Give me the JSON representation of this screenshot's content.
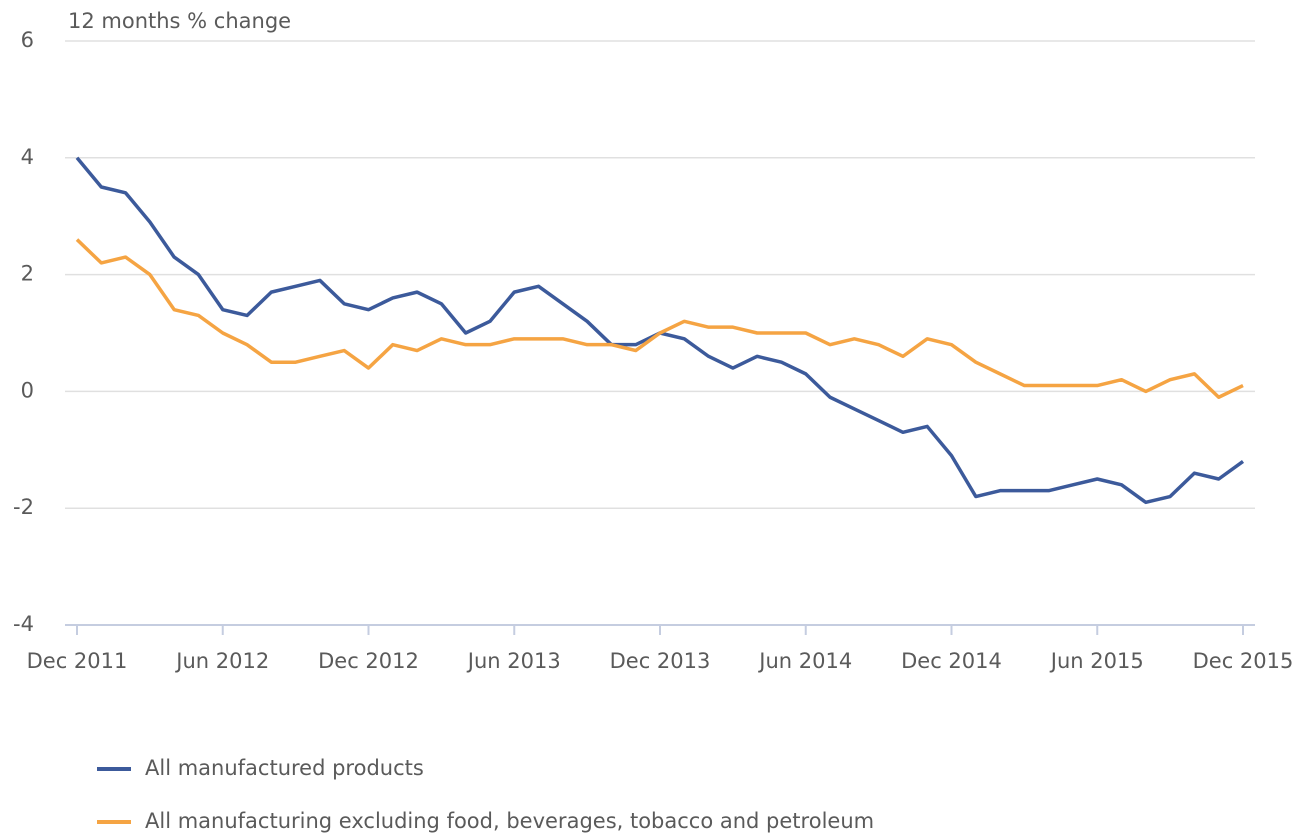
{
  "chart_data": {
    "type": "line",
    "y_axis_label": "12 months % change",
    "categories": [
      "Dec 2011",
      null,
      null,
      null,
      null,
      null,
      "Jun 2012",
      null,
      null,
      null,
      null,
      null,
      "Dec 2012",
      null,
      null,
      null,
      null,
      null,
      "Jun 2013",
      null,
      null,
      null,
      null,
      null,
      "Dec 2013",
      null,
      null,
      null,
      null,
      null,
      "Jun 2014",
      null,
      null,
      null,
      null,
      null,
      "Dec 2014",
      null,
      null,
      null,
      null,
      null,
      "Jun 2015",
      null,
      null,
      null,
      null,
      null,
      "Dec 2015"
    ],
    "series": [
      {
        "name": "All manufactured products",
        "color": "#3c5a9b",
        "values": [
          4.0,
          3.5,
          3.4,
          2.9,
          2.3,
          2.0,
          1.4,
          1.3,
          1.7,
          1.8,
          1.9,
          1.5,
          1.4,
          1.6,
          1.7,
          1.5,
          1.0,
          1.2,
          1.7,
          1.8,
          1.5,
          1.2,
          0.8,
          0.8,
          1.0,
          0.9,
          0.6,
          0.4,
          0.6,
          0.5,
          0.3,
          -0.1,
          -0.3,
          -0.5,
          -0.7,
          -0.6,
          -1.1,
          -1.8,
          -1.7,
          -1.7,
          -1.7,
          -1.6,
          -1.5,
          -1.6,
          -1.9,
          -1.8,
          -1.4,
          -1.5,
          -1.2
        ]
      },
      {
        "name": "All manufacturing excluding food, beverages, tobacco and petroleum",
        "color": "#f5a443",
        "values": [
          2.6,
          2.2,
          2.3,
          2.0,
          1.4,
          1.3,
          1.0,
          0.8,
          0.5,
          0.5,
          0.6,
          0.7,
          0.4,
          0.8,
          0.7,
          0.9,
          0.8,
          0.8,
          0.9,
          0.9,
          0.9,
          0.8,
          0.8,
          0.7,
          1.0,
          1.2,
          1.1,
          1.1,
          1.0,
          1.0,
          1.0,
          0.8,
          0.9,
          0.8,
          0.6,
          0.9,
          0.8,
          0.5,
          0.3,
          0.1,
          0.1,
          0.1,
          0.1,
          0.2,
          0.0,
          0.2,
          0.3,
          -0.1,
          0.1
        ]
      }
    ],
    "ylim": [
      -4,
      6
    ],
    "yticks": [
      -4,
      -2,
      0,
      2,
      4,
      6
    ],
    "grid": true
  }
}
